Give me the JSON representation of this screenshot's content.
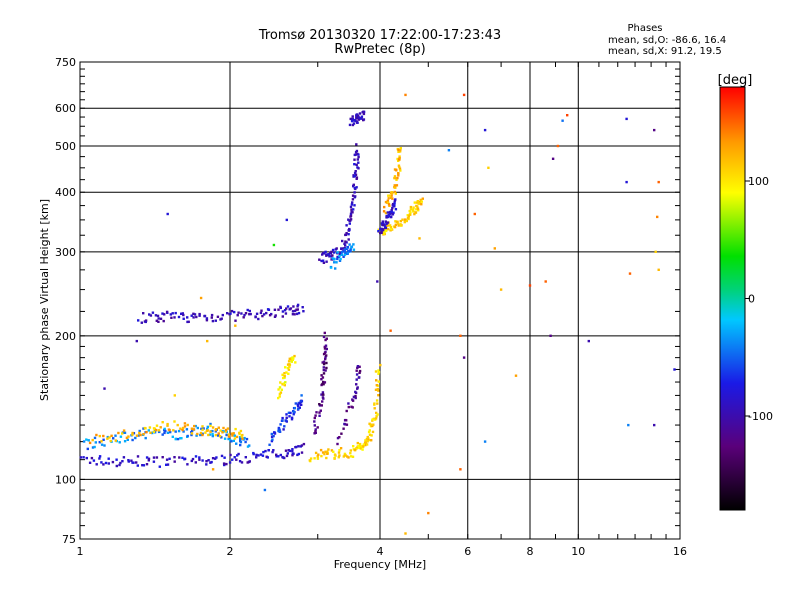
{
  "chart_data": {
    "type": "scatter",
    "title": "Tromsø 20130320 17:22:00-17:23:43",
    "subtitle": "RwPretec (8p)",
    "xlabel": "Frequency [MHz]",
    "ylabel": "Stationary phase Virtual Height [km]",
    "x_scale": "log",
    "y_scale": "log",
    "xlim": [
      1,
      16
    ],
    "ylim": [
      75,
      750
    ],
    "x_ticks": [
      1,
      2,
      4,
      6,
      8,
      10,
      16
    ],
    "x_tick_labels": [
      "1",
      "2",
      "4",
      "6",
      "8",
      "10",
      "16"
    ],
    "y_ticks": [
      75,
      100,
      200,
      300,
      400,
      500,
      600,
      750
    ],
    "y_tick_labels": [
      "75",
      "100",
      "200",
      "300",
      "400",
      "500",
      "600",
      "750"
    ],
    "grid": true,
    "phase_summary": {
      "heading": "Phases",
      "line_o": "mean, sd,O: -86.6, 16.4",
      "line_x": "mean, sd,X:  91.2, 19.5"
    },
    "colorbar": {
      "label": "[deg]",
      "range": [
        -180,
        180
      ],
      "ticks": [
        100,
        0,
        -100
      ],
      "tick_labels": [
        "100",
        "0",
        "-100"
      ]
    },
    "traces": [
      {
        "f": [
          1.0,
          1.2,
          1.4,
          1.7,
          2.0,
          2.3,
          2.6,
          2.8
        ],
        "h": [
          110,
          109,
          109,
          109,
          110,
          112,
          114,
          116
        ],
        "phase": -90
      },
      {
        "f": [
          1.32,
          1.5,
          1.7,
          2.0,
          2.3,
          2.6,
          2.8
        ],
        "h": [
          218,
          219,
          219,
          220,
          222,
          225,
          228
        ],
        "phase": -95
      },
      {
        "f": [
          2.9,
          3.2,
          3.5,
          3.7,
          3.82,
          3.92,
          3.97
        ],
        "h": [
          112,
          113,
          114,
          118,
          124,
          140,
          175
        ],
        "phase": 110
      },
      {
        "f": [
          3.05,
          3.2,
          3.35,
          3.45,
          3.52,
          3.58,
          3.6
        ],
        "h": [
          290,
          295,
          300,
          330,
          380,
          440,
          500
        ],
        "phase": -95
      },
      {
        "f": [
          3.2,
          3.4,
          3.55
        ],
        "h": [
          280,
          300,
          310
        ],
        "phase": -40
      },
      {
        "f": [
          3.3,
          3.55,
          3.65
        ],
        "h": [
          120,
          150,
          175
        ],
        "phase": -115
      },
      {
        "f": [
          3.5,
          3.6,
          3.7
        ],
        "h": [
          560,
          570,
          580
        ],
        "phase": -95
      },
      {
        "f": [
          2.95,
          3.05,
          3.1,
          3.12
        ],
        "h": [
          125,
          150,
          175,
          200
        ],
        "phase": -125
      },
      {
        "f": [
          2.4,
          2.55,
          2.7,
          2.8
        ],
        "h": [
          120,
          130,
          140,
          150
        ],
        "phase": -65
      },
      {
        "f": [
          2.5,
          2.6,
          2.7
        ],
        "h": [
          150,
          170,
          180
        ],
        "phase": 100
      },
      {
        "f": [
          4.0,
          4.2,
          4.5,
          4.7,
          4.85
        ],
        "h": [
          330,
          340,
          350,
          370,
          380
        ],
        "phase": 110
      },
      {
        "f": [
          4.1,
          4.25,
          4.35,
          4.4
        ],
        "h": [
          370,
          400,
          450,
          500
        ],
        "phase": 120
      },
      {
        "f": [
          4.0,
          4.1,
          4.2,
          4.3
        ],
        "h": [
          330,
          345,
          360,
          380
        ],
        "phase": -90
      },
      {
        "f": [
          1.0,
          1.2,
          1.4,
          1.6,
          1.8,
          2.0,
          2.2
        ],
        "h": [
          118,
          122,
          126,
          124,
          128,
          122,
          120
        ],
        "phase": -40
      },
      {
        "f": [
          1.05,
          1.3,
          1.5,
          1.75,
          1.95,
          2.15
        ],
        "h": [
          121,
          125,
          130,
          127,
          126,
          124
        ],
        "phase": 120
      }
    ],
    "scatter": [
      {
        "f": 1.5,
        "h": 360,
        "phase": -80
      },
      {
        "f": 1.3,
        "h": 195,
        "phase": -100
      },
      {
        "f": 1.12,
        "h": 155,
        "phase": -100
      },
      {
        "f": 1.55,
        "h": 150,
        "phase": 110
      },
      {
        "f": 1.75,
        "h": 240,
        "phase": 130
      },
      {
        "f": 1.8,
        "h": 195,
        "phase": 120
      },
      {
        "f": 1.85,
        "h": 105,
        "phase": 130
      },
      {
        "f": 2.45,
        "h": 310,
        "phase": 40
      },
      {
        "f": 2.6,
        "h": 350,
        "phase": -80
      },
      {
        "f": 2.35,
        "h": 95,
        "phase": -45
      },
      {
        "f": 2.05,
        "h": 210,
        "phase": 120
      },
      {
        "f": 4.5,
        "h": 640,
        "phase": 140
      },
      {
        "f": 4.8,
        "h": 320,
        "phase": 120
      },
      {
        "f": 5.5,
        "h": 490,
        "phase": -40
      },
      {
        "f": 5.8,
        "h": 200,
        "phase": 150
      },
      {
        "f": 5.9,
        "h": 640,
        "phase": 160
      },
      {
        "f": 5.8,
        "h": 105,
        "phase": 150
      },
      {
        "f": 5.9,
        "h": 180,
        "phase": -120
      },
      {
        "f": 6.2,
        "h": 360,
        "phase": 150
      },
      {
        "f": 6.5,
        "h": 540,
        "phase": -80
      },
      {
        "f": 6.6,
        "h": 450,
        "phase": 110
      },
      {
        "f": 6.8,
        "h": 305,
        "phase": 130
      },
      {
        "f": 7.0,
        "h": 250,
        "phase": 120
      },
      {
        "f": 6.5,
        "h": 120,
        "phase": -40
      },
      {
        "f": 7.5,
        "h": 165,
        "phase": 130
      },
      {
        "f": 8.0,
        "h": 255,
        "phase": 160
      },
      {
        "f": 8.6,
        "h": 260,
        "phase": 150
      },
      {
        "f": 8.9,
        "h": 470,
        "phase": -120
      },
      {
        "f": 9.1,
        "h": 500,
        "phase": 150
      },
      {
        "f": 9.3,
        "h": 565,
        "phase": -45
      },
      {
        "f": 9.5,
        "h": 580,
        "phase": 160
      },
      {
        "f": 8.8,
        "h": 200,
        "phase": -120
      },
      {
        "f": 10.5,
        "h": 195,
        "phase": -100
      },
      {
        "f": 12.5,
        "h": 570,
        "phase": -80
      },
      {
        "f": 12.5,
        "h": 420,
        "phase": -80
      },
      {
        "f": 12.7,
        "h": 270,
        "phase": 150
      },
      {
        "f": 12.6,
        "h": 130,
        "phase": -40
      },
      {
        "f": 14.2,
        "h": 540,
        "phase": -120
      },
      {
        "f": 14.5,
        "h": 420,
        "phase": 150
      },
      {
        "f": 14.4,
        "h": 355,
        "phase": 140
      },
      {
        "f": 14.3,
        "h": 300,
        "phase": 110
      },
      {
        "f": 14.5,
        "h": 275,
        "phase": 120
      },
      {
        "f": 14.2,
        "h": 130,
        "phase": -100
      },
      {
        "f": 15.6,
        "h": 170,
        "phase": -80
      },
      {
        "f": 5.0,
        "h": 85,
        "phase": 140
      },
      {
        "f": 4.5,
        "h": 77,
        "phase": 120
      },
      {
        "f": 3.95,
        "h": 260,
        "phase": -100
      },
      {
        "f": 4.2,
        "h": 205,
        "phase": 150
      }
    ]
  }
}
